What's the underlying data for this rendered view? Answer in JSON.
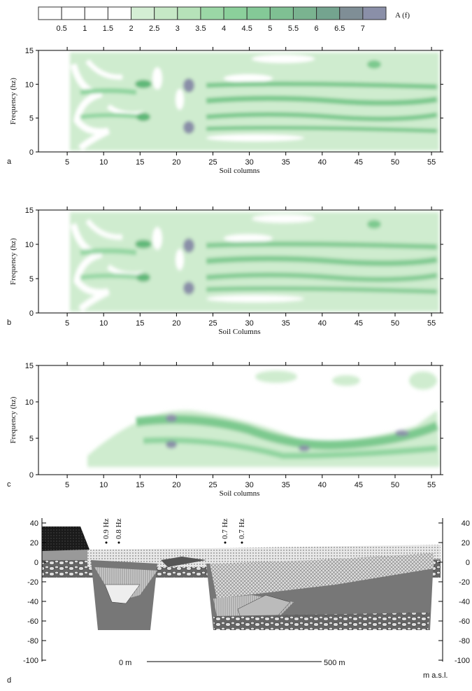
{
  "colorbar": {
    "title": "A (f)",
    "labels": [
      "0.5",
      "1",
      "1.5",
      "2",
      "2.5",
      "3",
      "3.5",
      "4",
      "4.5",
      "5",
      "5.5",
      "6",
      "6.5",
      "7"
    ]
  },
  "panels": [
    {
      "label": "a",
      "ylabel": "Frequency (hz)",
      "xlabel": "Soil columns",
      "yticks": [
        "0",
        "5",
        "10",
        "15"
      ],
      "xticks": [
        "5",
        "10",
        "15",
        "20",
        "25",
        "30",
        "35",
        "40",
        "45",
        "50",
        "55"
      ]
    },
    {
      "label": "b",
      "ylabel": "Frequency (hz)",
      "xlabel": "Soil Columns",
      "yticks": [
        "0",
        "5",
        "10",
        "15"
      ],
      "xticks": [
        "5",
        "10",
        "15",
        "20",
        "25",
        "30",
        "35",
        "40",
        "45",
        "50",
        "55"
      ]
    },
    {
      "label": "c",
      "ylabel": "Frequency (hz)",
      "xlabel": "Soil columns",
      "yticks": [
        "0",
        "5",
        "10",
        "15"
      ],
      "xticks": [
        "5",
        "10",
        "15",
        "20",
        "25",
        "30",
        "35",
        "40",
        "45",
        "50",
        "55"
      ]
    }
  ],
  "section": {
    "label": "d",
    "left_ticks": [
      "40",
      "20",
      "0",
      "-20",
      "-40",
      "-60",
      "-80",
      "-100"
    ],
    "right_ticks": [
      "40",
      "20",
      "0",
      "-20",
      "-40",
      "-60",
      "-80",
      "-100"
    ],
    "frequencies": [
      "0.9 Hz",
      "0.8 Hz",
      "0.7 Hz",
      "0.7 Hz"
    ],
    "scale_start": "0 m",
    "scale_end": "500 m",
    "unit": "m a.s.l."
  }
}
